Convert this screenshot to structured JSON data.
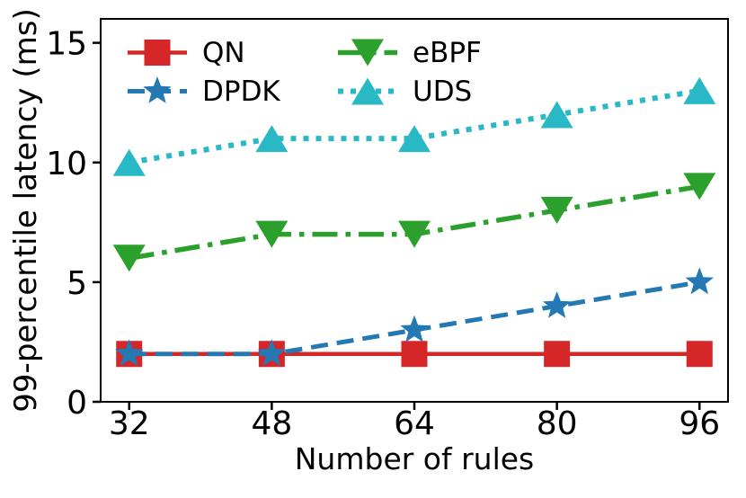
{
  "figure": {
    "background": "#ffffff",
    "axis_color": "#000000",
    "text_color": "#000000"
  },
  "chart_data": {
    "type": "line",
    "title": "",
    "xlabel": "Number of rules",
    "ylabel": "99-percentile latency (ms)",
    "x": [
      32,
      48,
      64,
      80,
      96
    ],
    "x_tick_labels": [
      "32",
      "48",
      "64",
      "80",
      "96"
    ],
    "y_tick_values": [
      0,
      5,
      10,
      15
    ],
    "y_tick_labels": [
      "0",
      "5",
      "10",
      "15"
    ],
    "xlim": [
      28.8,
      99.2
    ],
    "ylim": [
      0,
      16
    ],
    "grid": false,
    "legend": {
      "position": "upper-left-inside",
      "columns": 2,
      "frame": false,
      "order": [
        "QN",
        "eBPF",
        "DPDK",
        "UDS"
      ]
    },
    "series": [
      {
        "name": "QN",
        "values": [
          2,
          2,
          2,
          2,
          2
        ],
        "color": "#d62728",
        "marker": "square",
        "linestyle": "solid"
      },
      {
        "name": "DPDK",
        "values": [
          2,
          2,
          3,
          4,
          5
        ],
        "color": "#2478b4",
        "marker": "star",
        "linestyle": "dashed"
      },
      {
        "name": "eBPF",
        "values": [
          6,
          7,
          7,
          8,
          9
        ],
        "color": "#2ca02c",
        "marker": "triangle-down",
        "linestyle": "dashdot"
      },
      {
        "name": "UDS",
        "values": [
          10,
          11,
          11,
          12,
          13
        ],
        "color": "#29b8c5",
        "marker": "triangle-up",
        "linestyle": "dotted"
      }
    ]
  }
}
